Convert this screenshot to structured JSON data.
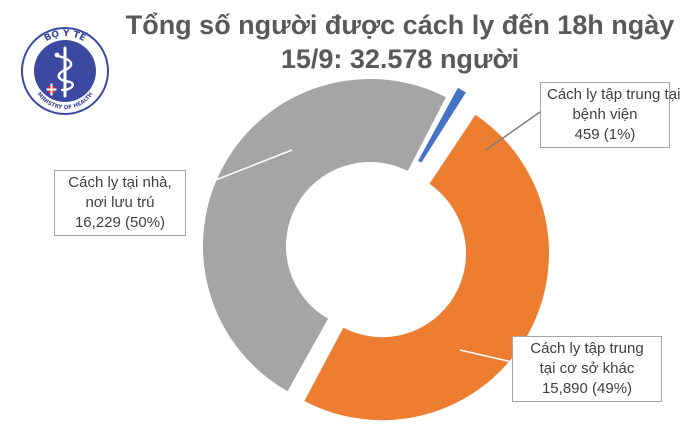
{
  "title": {
    "line1": "Tổng số người được cách ly đến 18h ngày",
    "line2": "15/9: 32.578 người"
  },
  "logo": {
    "top_text": "BỘ Y TẾ",
    "bottom_text": "MINISTRY OF HEALTH",
    "color": "#3b4aa0"
  },
  "chart_data": {
    "type": "pie",
    "style": "doughnut",
    "total": "32.578",
    "slices": [
      {
        "label_lines": [
          "Cách ly tập trung tại",
          "bệnh viện"
        ],
        "value": 459,
        "display_value": "459 (1%)",
        "color": "#4472c4",
        "exploded": true
      },
      {
        "label_lines": [
          "Cách ly tập trung",
          "tại cơ sở khác"
        ],
        "value": 15890,
        "display_value": "15,890 (49%)",
        "color": "#ed7d31",
        "exploded": true
      },
      {
        "label_lines": [
          "Cách ly tại nhà,",
          "nơi lưu trú"
        ],
        "value": 16229,
        "display_value": "16,229 (50%)",
        "color": "#a5a5a5",
        "exploded": false
      }
    ]
  }
}
